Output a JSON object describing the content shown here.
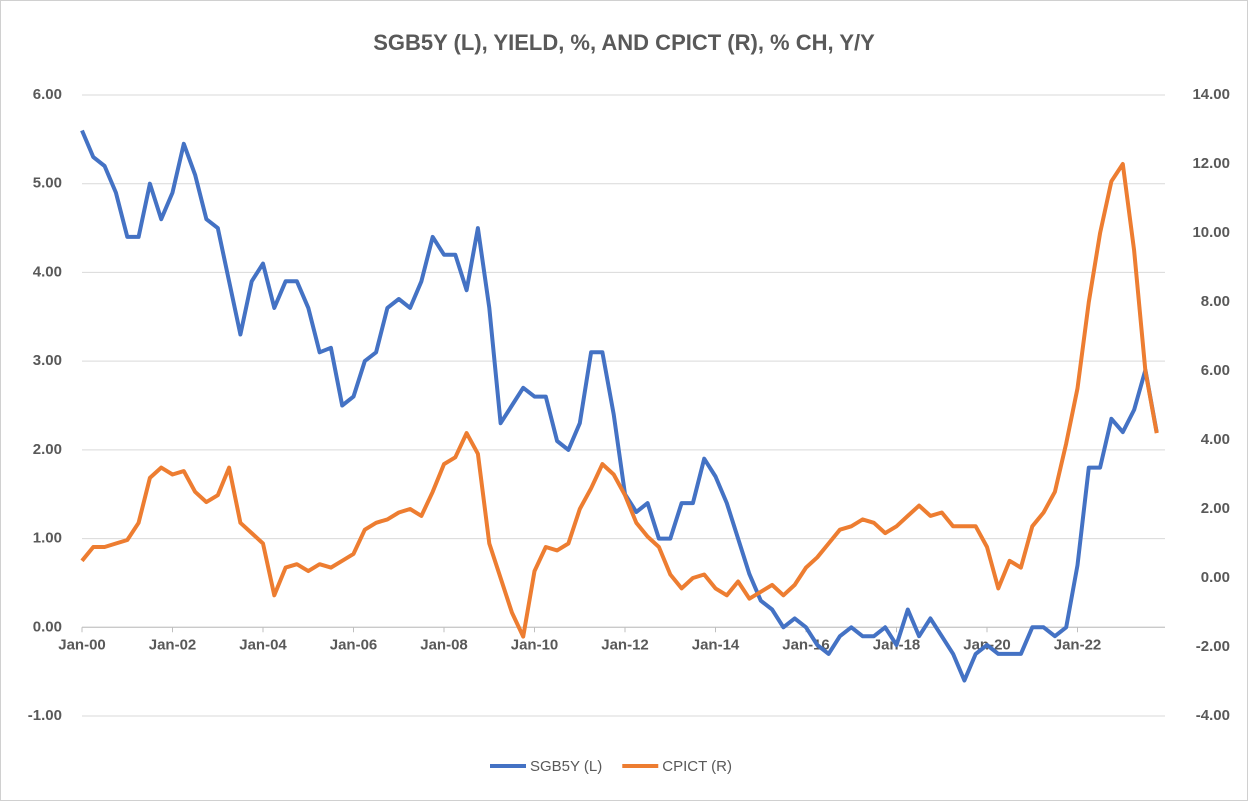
{
  "chart_data": {
    "type": "line",
    "title": "SGB5Y (L), YIELD, %, AND CPICT (R), % CH, Y/Y",
    "categories": [
      "Jan-00",
      null,
      null,
      null,
      null,
      null,
      null,
      null,
      "Jan-02",
      null,
      null,
      null,
      null,
      null,
      null,
      null,
      "Jan-04",
      null,
      null,
      null,
      null,
      null,
      null,
      null,
      "Jan-06",
      null,
      null,
      null,
      null,
      null,
      null,
      null,
      "Jan-08",
      null,
      null,
      null,
      null,
      null,
      null,
      null,
      "Jan-10",
      null,
      null,
      null,
      null,
      null,
      null,
      null,
      "Jan-12",
      null,
      null,
      null,
      null,
      null,
      null,
      null,
      "Jan-14",
      null,
      null,
      null,
      null,
      null,
      null,
      null,
      "Jan-16",
      null,
      null,
      null,
      null,
      null,
      null,
      null,
      "Jan-18",
      null,
      null,
      null,
      null,
      null,
      null,
      null,
      "Jan-20",
      null,
      null,
      null,
      null,
      null,
      null,
      null,
      "Jan-22",
      null,
      null,
      null,
      null,
      null,
      null,
      null
    ],
    "series": [
      {
        "name": "SGB5Y (L)",
        "color": "#4472c4",
        "axis": "y",
        "values": [
          5.6,
          5.3,
          5.2,
          4.9,
          4.4,
          4.4,
          5.0,
          4.6,
          4.9,
          5.45,
          5.1,
          4.6,
          4.5,
          3.9,
          3.3,
          3.9,
          4.1,
          3.6,
          3.9,
          3.9,
          3.6,
          3.1,
          3.15,
          2.5,
          2.6,
          3.0,
          3.1,
          3.6,
          3.7,
          3.6,
          3.9,
          4.4,
          4.2,
          4.2,
          3.8,
          4.5,
          3.6,
          2.3,
          2.5,
          2.7,
          2.6,
          2.6,
          2.1,
          2.0,
          2.3,
          3.1,
          3.1,
          2.4,
          1.5,
          1.3,
          1.4,
          1.0,
          1.0,
          1.4,
          1.4,
          1.9,
          1.7,
          1.4,
          1.0,
          0.6,
          0.3,
          0.2,
          0.0,
          0.1,
          0.0,
          -0.2,
          -0.3,
          -0.1,
          0.0,
          -0.1,
          -0.1,
          0.0,
          -0.2,
          0.2,
          -0.1,
          0.1,
          -0.1,
          -0.3,
          -0.6,
          -0.3,
          -0.2,
          -0.3,
          -0.3,
          -0.3,
          0.0,
          0.0,
          -0.1,
          0.0,
          0.7,
          1.8,
          1.8,
          2.35,
          2.2,
          2.45,
          2.9,
          2.2
        ]
      },
      {
        "name": "CPICT (R)",
        "color": "#ed7d31",
        "axis": "y2",
        "values": [
          0.5,
          0.9,
          0.9,
          1.0,
          1.1,
          1.6,
          2.9,
          3.2,
          3.0,
          3.1,
          2.5,
          2.2,
          2.4,
          3.2,
          1.6,
          1.3,
          1.0,
          -0.5,
          0.3,
          0.4,
          0.2,
          0.4,
          0.3,
          0.5,
          0.7,
          1.4,
          1.6,
          1.7,
          1.9,
          2.0,
          1.8,
          2.5,
          3.3,
          3.5,
          4.2,
          3.6,
          1.0,
          0.0,
          -1.0,
          -1.7,
          0.2,
          0.9,
          0.8,
          1.0,
          2.0,
          2.6,
          3.3,
          3.0,
          2.4,
          1.6,
          1.2,
          0.9,
          0.1,
          -0.3,
          0.0,
          0.1,
          -0.3,
          -0.5,
          -0.1,
          -0.6,
          -0.4,
          -0.2,
          -0.5,
          -0.2,
          0.3,
          0.6,
          1.0,
          1.4,
          1.5,
          1.7,
          1.6,
          1.3,
          1.5,
          1.8,
          2.1,
          1.8,
          1.9,
          1.5,
          1.5,
          1.5,
          0.9,
          -0.3,
          0.5,
          0.3,
          1.5,
          1.9,
          2.5,
          3.9,
          5.5,
          8.0,
          10.0,
          11.5,
          12.0,
          9.5,
          6.0,
          4.2
        ]
      }
    ],
    "ylim": [
      -1,
      6
    ],
    "yticks": [
      {
        "value": -1,
        "label": "-1.00"
      },
      {
        "value": 0,
        "label": "0.00"
      },
      {
        "value": 1,
        "label": "1.00"
      },
      {
        "value": 2,
        "label": "2.00"
      },
      {
        "value": 3,
        "label": "3.00"
      },
      {
        "value": 4,
        "label": "4.00"
      },
      {
        "value": 5,
        "label": "5.00"
      },
      {
        "value": 6,
        "label": "6.00"
      }
    ],
    "y2lim": [
      -4,
      14
    ],
    "y2ticks": [
      {
        "value": -4,
        "label": "-4.00"
      },
      {
        "value": -2,
        "label": "-2.00"
      },
      {
        "value": 0,
        "label": "0.00"
      },
      {
        "value": 2,
        "label": "2.00"
      },
      {
        "value": 4,
        "label": "4.00"
      },
      {
        "value": 6,
        "label": "6.00"
      },
      {
        "value": 8,
        "label": "8.00"
      },
      {
        "value": 10,
        "label": "10.00"
      },
      {
        "value": 12,
        "label": "12.00"
      },
      {
        "value": 14,
        "label": "14.00"
      }
    ],
    "grid": true,
    "legend": "bottom"
  }
}
